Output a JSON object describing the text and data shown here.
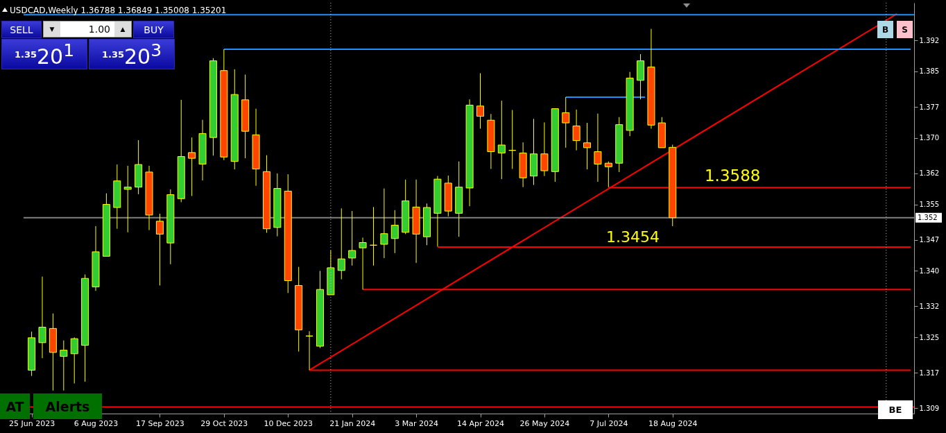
{
  "chart_data": {
    "type": "candlestick",
    "title": "USDCAD,Weekly 1.36788 1.36849 1.35008 1.35201",
    "x": [
      "2023-06-25",
      "2023-07-02",
      "2023-07-09",
      "2023-07-16",
      "2023-07-23",
      "2023-07-30",
      "2023-08-06",
      "2023-08-13",
      "2023-08-20",
      "2023-08-27",
      "2023-09-03",
      "2023-09-10",
      "2023-09-17",
      "2023-09-24",
      "2023-10-01",
      "2023-10-08",
      "2023-10-15",
      "2023-10-22",
      "2023-10-29",
      "2023-11-05",
      "2023-11-12",
      "2023-11-19",
      "2023-11-26",
      "2023-12-03",
      "2023-12-10",
      "2023-12-17",
      "2023-12-24",
      "2023-12-31",
      "2024-01-07",
      "2024-01-14",
      "2024-01-21",
      "2024-01-28",
      "2024-02-04",
      "2024-02-11",
      "2024-02-18",
      "2024-02-25",
      "2024-03-03",
      "2024-03-10",
      "2024-03-17",
      "2024-03-24",
      "2024-03-31",
      "2024-04-07",
      "2024-04-14",
      "2024-04-21",
      "2024-04-28",
      "2024-05-05",
      "2024-05-12",
      "2024-05-19",
      "2024-05-26",
      "2024-06-02",
      "2024-06-09",
      "2024-06-16",
      "2024-06-23",
      "2024-06-30",
      "2024-07-07",
      "2024-07-14",
      "2024-07-21",
      "2024-07-28",
      "2024-08-04",
      "2024-08-11",
      "2024-08-18"
    ],
    "ohlc": [
      [
        1.3176,
        1.3263,
        1.3163,
        1.3249
      ],
      [
        1.3238,
        1.3387,
        1.3203,
        1.3273
      ],
      [
        1.327,
        1.3304,
        1.313,
        1.3216
      ],
      [
        1.3207,
        1.3243,
        1.313,
        1.3221
      ],
      [
        1.3213,
        1.325,
        1.3146,
        1.3247
      ],
      [
        1.3232,
        1.3392,
        1.315,
        1.3383
      ],
      [
        1.3364,
        1.3501,
        1.3355,
        1.3443
      ],
      [
        1.3433,
        1.3575,
        1.3433,
        1.355
      ],
      [
        1.3543,
        1.364,
        1.3495,
        1.3603
      ],
      [
        1.3584,
        1.3637,
        1.3487,
        1.3589
      ],
      [
        1.3589,
        1.3695,
        1.3573,
        1.364
      ],
      [
        1.3623,
        1.3637,
        1.3492,
        1.3526
      ],
      [
        1.3512,
        1.3529,
        1.3367,
        1.3483
      ],
      [
        1.3463,
        1.3584,
        1.3415,
        1.3572
      ],
      [
        1.3563,
        1.3786,
        1.3555,
        1.3658
      ],
      [
        1.3667,
        1.3701,
        1.3569,
        1.3654
      ],
      [
        1.3641,
        1.3741,
        1.3604,
        1.371
      ],
      [
        1.3701,
        1.388,
        1.366,
        1.3874
      ],
      [
        1.3852,
        1.39,
        1.365,
        1.3657
      ],
      [
        1.3647,
        1.3855,
        1.3629,
        1.3798
      ],
      [
        1.3786,
        1.3843,
        1.3654,
        1.3715
      ],
      [
        1.3707,
        1.3766,
        1.3592,
        1.363
      ],
      [
        1.3624,
        1.3661,
        1.3486,
        1.3495
      ],
      [
        1.3498,
        1.362,
        1.3478,
        1.3586
      ],
      [
        1.358,
        1.3618,
        1.335,
        1.3378
      ],
      [
        1.3367,
        1.3409,
        1.3218,
        1.3267
      ],
      [
        1.3253,
        1.3264,
        1.3176,
        1.3253
      ],
      [
        1.323,
        1.34,
        1.3226,
        1.3358
      ],
      [
        1.3346,
        1.3446,
        1.3346,
        1.3407
      ],
      [
        1.3401,
        1.3541,
        1.3381,
        1.3427
      ],
      [
        1.3429,
        1.3535,
        1.3412,
        1.3446
      ],
      [
        1.3452,
        1.3475,
        1.3358,
        1.3464
      ],
      [
        1.3458,
        1.3544,
        1.3412,
        1.3458
      ],
      [
        1.346,
        1.3586,
        1.3429,
        1.3484
      ],
      [
        1.3473,
        1.3537,
        1.344,
        1.3503
      ],
      [
        1.3487,
        1.3606,
        1.3483,
        1.3558
      ],
      [
        1.3544,
        1.3606,
        1.3418,
        1.3483
      ],
      [
        1.3477,
        1.3552,
        1.3458,
        1.3543
      ],
      [
        1.353,
        1.3614,
        1.3455,
        1.3607
      ],
      [
        1.3598,
        1.3615,
        1.3523,
        1.3535
      ],
      [
        1.353,
        1.3647,
        1.3477,
        1.3589
      ],
      [
        1.3587,
        1.3787,
        1.3546,
        1.3774
      ],
      [
        1.3772,
        1.3846,
        1.3721,
        1.3749
      ],
      [
        1.374,
        1.3754,
        1.363,
        1.3669
      ],
      [
        1.3666,
        1.3784,
        1.3607,
        1.3684
      ],
      [
        1.3672,
        1.3763,
        1.363,
        1.3672
      ],
      [
        1.3666,
        1.369,
        1.3589,
        1.361
      ],
      [
        1.3614,
        1.3743,
        1.3594,
        1.3664
      ],
      [
        1.3664,
        1.3735,
        1.3614,
        1.3626
      ],
      [
        1.3624,
        1.3767,
        1.3601,
        1.3766
      ],
      [
        1.3757,
        1.3792,
        1.3678,
        1.3734
      ],
      [
        1.3727,
        1.3764,
        1.3672,
        1.3694
      ],
      [
        1.3689,
        1.3734,
        1.3629,
        1.3678
      ],
      [
        1.3669,
        1.3755,
        1.3601,
        1.3641
      ],
      [
        1.3643,
        1.3647,
        1.3589,
        1.3635
      ],
      [
        1.3643,
        1.3747,
        1.3623,
        1.373
      ],
      [
        1.3717,
        1.3849,
        1.3704,
        1.3835
      ],
      [
        1.383,
        1.3889,
        1.3787,
        1.3874
      ],
      [
        1.386,
        1.3946,
        1.3721,
        1.3729
      ],
      [
        1.3734,
        1.3747,
        1.3678,
        1.3678
      ],
      [
        1.36788,
        1.36849,
        1.35008,
        1.35201
      ]
    ],
    "colors": [
      "#32cd32",
      "#32cd32",
      "#ff4500",
      "#32cd32",
      "#32cd32",
      "#32cd32",
      "#32cd32",
      "#32cd32",
      "#32cd32",
      "#32cd32",
      "#32cd32",
      "#ff4500",
      "#ff4500",
      "#32cd32",
      "#32cd32",
      "#ff4500",
      "#32cd32",
      "#32cd32",
      "#ff4500",
      "#32cd32",
      "#ff4500",
      "#ff4500",
      "#ff4500",
      "#32cd32",
      "#ff4500",
      "#ff4500",
      "#ffff00",
      "#32cd32",
      "#32cd32",
      "#32cd32",
      "#32cd32",
      "#32cd32",
      "#ffff00",
      "#32cd32",
      "#32cd32",
      "#32cd32",
      "#ff4500",
      "#32cd32",
      "#32cd32",
      "#ff4500",
      "#32cd32",
      "#32cd32",
      "#ff4500",
      "#ff4500",
      "#32cd32",
      "#ffff00",
      "#ff4500",
      "#32cd32",
      "#ff4500",
      "#32cd32",
      "#ff4500",
      "#ff4500",
      "#ff4500",
      "#ff4500",
      "#ff4500",
      "#32cd32",
      "#32cd32",
      "#32cd32",
      "#ff4500",
      "#ff4500",
      "#ff4500"
    ],
    "xlim": [
      "2023-06-22",
      "2025-01-21"
    ],
    "ylim": [
      1.3078,
      1.4005
    ],
    "xticks": [
      {
        "value": "2023-06-25",
        "label": "25 Jun 2023"
      },
      {
        "value": "2023-08-06",
        "label": "6 Aug 2023"
      },
      {
        "value": "2023-09-17",
        "label": "17 Sep 2023"
      },
      {
        "value": "2023-10-29",
        "label": "29 Oct 2023"
      },
      {
        "value": "2023-12-10",
        "label": "10 Dec 2023"
      },
      {
        "value": "2024-01-21",
        "label": "21 Jan 2024"
      },
      {
        "value": "2024-03-03",
        "label": "3 Mar 2024"
      },
      {
        "value": "2024-04-14",
        "label": "14 Apr 2024"
      },
      {
        "value": "2024-05-26",
        "label": "26 May 2024"
      },
      {
        "value": "2024-07-07",
        "label": "7 Jul 2024"
      },
      {
        "value": "2024-08-18",
        "label": "18 Aug 2024"
      }
    ],
    "yticks": [
      1.392,
      1.385,
      1.377,
      {
        "value": 1.37,
        "label": "1.370"
      },
      1.362,
      1.355,
      1.347,
      {
        "value": 1.34,
        "label": "1.340"
      },
      1.332,
      1.325,
      1.317,
      1.309
    ],
    "series": [
      {
        "type": "line",
        "color": "#ff0000",
        "x": [
          "2023-12-24",
          "2025-01-12"
        ],
        "values": [
          1.3176,
          1.398
        ]
      },
      {
        "type": "line",
        "color": "#ff0000",
        "x": [
          "2024-07-07",
          "2025-01-21"
        ],
        "values": [
          1.3588,
          1.3588
        ]
      },
      {
        "type": "line",
        "color": "#ff0000",
        "x": [
          "2024-03-17",
          "2025-01-21"
        ],
        "values": [
          1.3454,
          1.3454
        ]
      },
      {
        "type": "line",
        "color": "#ff0000",
        "x": [
          "2024-01-28",
          "2025-01-21"
        ],
        "values": [
          1.3358,
          1.3358
        ]
      },
      {
        "type": "line",
        "color": "#ff0000",
        "x": [
          "2023-12-24",
          "2025-01-21"
        ],
        "values": [
          1.3176,
          1.3176
        ]
      },
      {
        "type": "line",
        "color": "#1e90ff",
        "x": [
          "2023-10-29",
          "2025-01-21"
        ],
        "values": [
          1.39,
          1.39
        ]
      },
      {
        "type": "line",
        "color": "#1e90ff",
        "x": [
          "2024-06-09",
          "2024-07-31"
        ],
        "values": [
          1.3792,
          1.3792
        ]
      }
    ],
    "ref_lines": [
      {
        "axis": "x",
        "value": "2024-01-07",
        "color": "#c0c0c0",
        "line_style": "dotted"
      },
      {
        "axis": "x",
        "value": "2025-01-05",
        "color": "#c0c0c0",
        "line_style": "dotted"
      },
      {
        "axis": "y",
        "value": 1.3978,
        "color": "#1e90ff"
      },
      {
        "axis": "y",
        "value": 1.3093,
        "color": "#ff0000"
      },
      {
        "axis": "y",
        "value": 1.35201,
        "color": "#808080",
        "label": "1.352"
      }
    ],
    "annotations": [
      {
        "text": "1.3588",
        "x": "2024-09-08",
        "y": 1.3588
      },
      {
        "text": "1.3454",
        "x": "2024-07-23",
        "y": 1.3454
      },
      "SELL",
      "▼",
      "1.00",
      "▲",
      "BUY",
      "1.3520$^{1}$",
      "1.3520$^{3}$",
      "AT",
      "Alerts",
      "B",
      "S",
      "BE"
    ]
  }
}
